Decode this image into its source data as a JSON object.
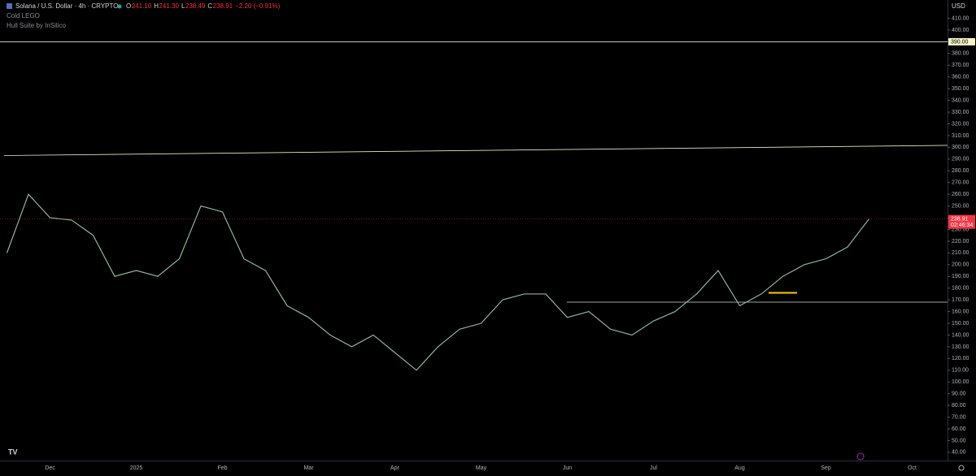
{
  "chart_data": {
    "type": "line",
    "title": "Solana / U.S. Dollar · 4h · CRYPTO",
    "ohlc_letters": [
      "O",
      "H",
      "L",
      "C"
    ],
    "ohlc_values": [
      "241.10",
      "241.30",
      "238.49",
      "238.91"
    ],
    "change": "−2.20 (−0.91%)",
    "indicators": [
      "Cold LEGO",
      "Hull Suite by InSilico"
    ],
    "currency": "USD",
    "color": "#8fb39a",
    "categories": [
      null,
      null,
      "Dec",
      null,
      null,
      null,
      "2025",
      null,
      null,
      null,
      "Feb",
      null,
      null,
      null,
      "Mar",
      null,
      null,
      null,
      "Apr",
      null,
      null,
      null,
      "May",
      null,
      null,
      null,
      "Jun",
      null,
      null,
      null,
      "Jul",
      null,
      null,
      null,
      "Aug",
      null,
      null,
      null,
      "Sep",
      null,
      null,
      null,
      "Oct",
      null
    ],
    "values": [
      210,
      260,
      240,
      238,
      225,
      190,
      195,
      190,
      205,
      250,
      245,
      205,
      195,
      165,
      155,
      140,
      130,
      140,
      125,
      110,
      130,
      145,
      150,
      170,
      175,
      175,
      155,
      160,
      145,
      140,
      152,
      160,
      175,
      195,
      165,
      175,
      190,
      200,
      205,
      215,
      239,
      null,
      null,
      null
    ],
    "last_price": 238.91,
    "last_price_label": "238.91",
    "countdown": "02:46:34",
    "resistance": 390,
    "resistance_label": "390.00",
    "support": 168,
    "short_support": 176,
    "trendline": [
      293,
      301.7
    ],
    "grid": false,
    "ylim": [
      33,
      425.6
    ],
    "yticks": [
      {
        "value": 40,
        "label": "40.00"
      },
      {
        "value": 50,
        "label": "50.00"
      },
      {
        "value": 60,
        "label": "60.00"
      },
      {
        "value": 70,
        "label": "70.00"
      },
      {
        "value": 80,
        "label": "80.00"
      },
      {
        "value": 90,
        "label": "90.00"
      },
      {
        "value": 100,
        "label": "100.00"
      },
      {
        "value": 110,
        "label": "110.00"
      },
      {
        "value": 120,
        "label": "120.00"
      },
      {
        "value": 130,
        "label": "130.00"
      },
      {
        "value": 140,
        "label": "140.00"
      },
      {
        "value": 150,
        "label": "150.00"
      },
      {
        "value": 160,
        "label": "160.00"
      },
      {
        "value": 170,
        "label": "170.00"
      },
      {
        "value": 180,
        "label": "180.00"
      },
      {
        "value": 190,
        "label": "190.00"
      },
      {
        "value": 200,
        "label": "200.00"
      },
      {
        "value": 210,
        "label": "210.00"
      },
      {
        "value": 220,
        "label": "220.00"
      },
      {
        "value": 230,
        "label": "230.00"
      },
      {
        "value": 240,
        "label": "240.00"
      },
      {
        "value": 250,
        "label": "250.00"
      },
      {
        "value": 260,
        "label": "260.00"
      },
      {
        "value": 270,
        "label": "270.00"
      },
      {
        "value": 280,
        "label": "280.00"
      },
      {
        "value": 290,
        "label": "290.00"
      },
      {
        "value": 300,
        "label": "300.00"
      },
      {
        "value": 310,
        "label": "310.00"
      },
      {
        "value": 320,
        "label": "320.00"
      },
      {
        "value": 330,
        "label": "330.00"
      },
      {
        "value": 340,
        "label": "340.00"
      },
      {
        "value": 350,
        "label": "350.00"
      },
      {
        "value": 360,
        "label": "360.00"
      },
      {
        "value": 370,
        "label": "370.00"
      },
      {
        "value": 380,
        "label": "380.00"
      },
      {
        "value": 390,
        "label": "390.00"
      },
      {
        "value": 400,
        "label": "400.00"
      },
      {
        "value": 410,
        "label": "410.00"
      }
    ]
  }
}
